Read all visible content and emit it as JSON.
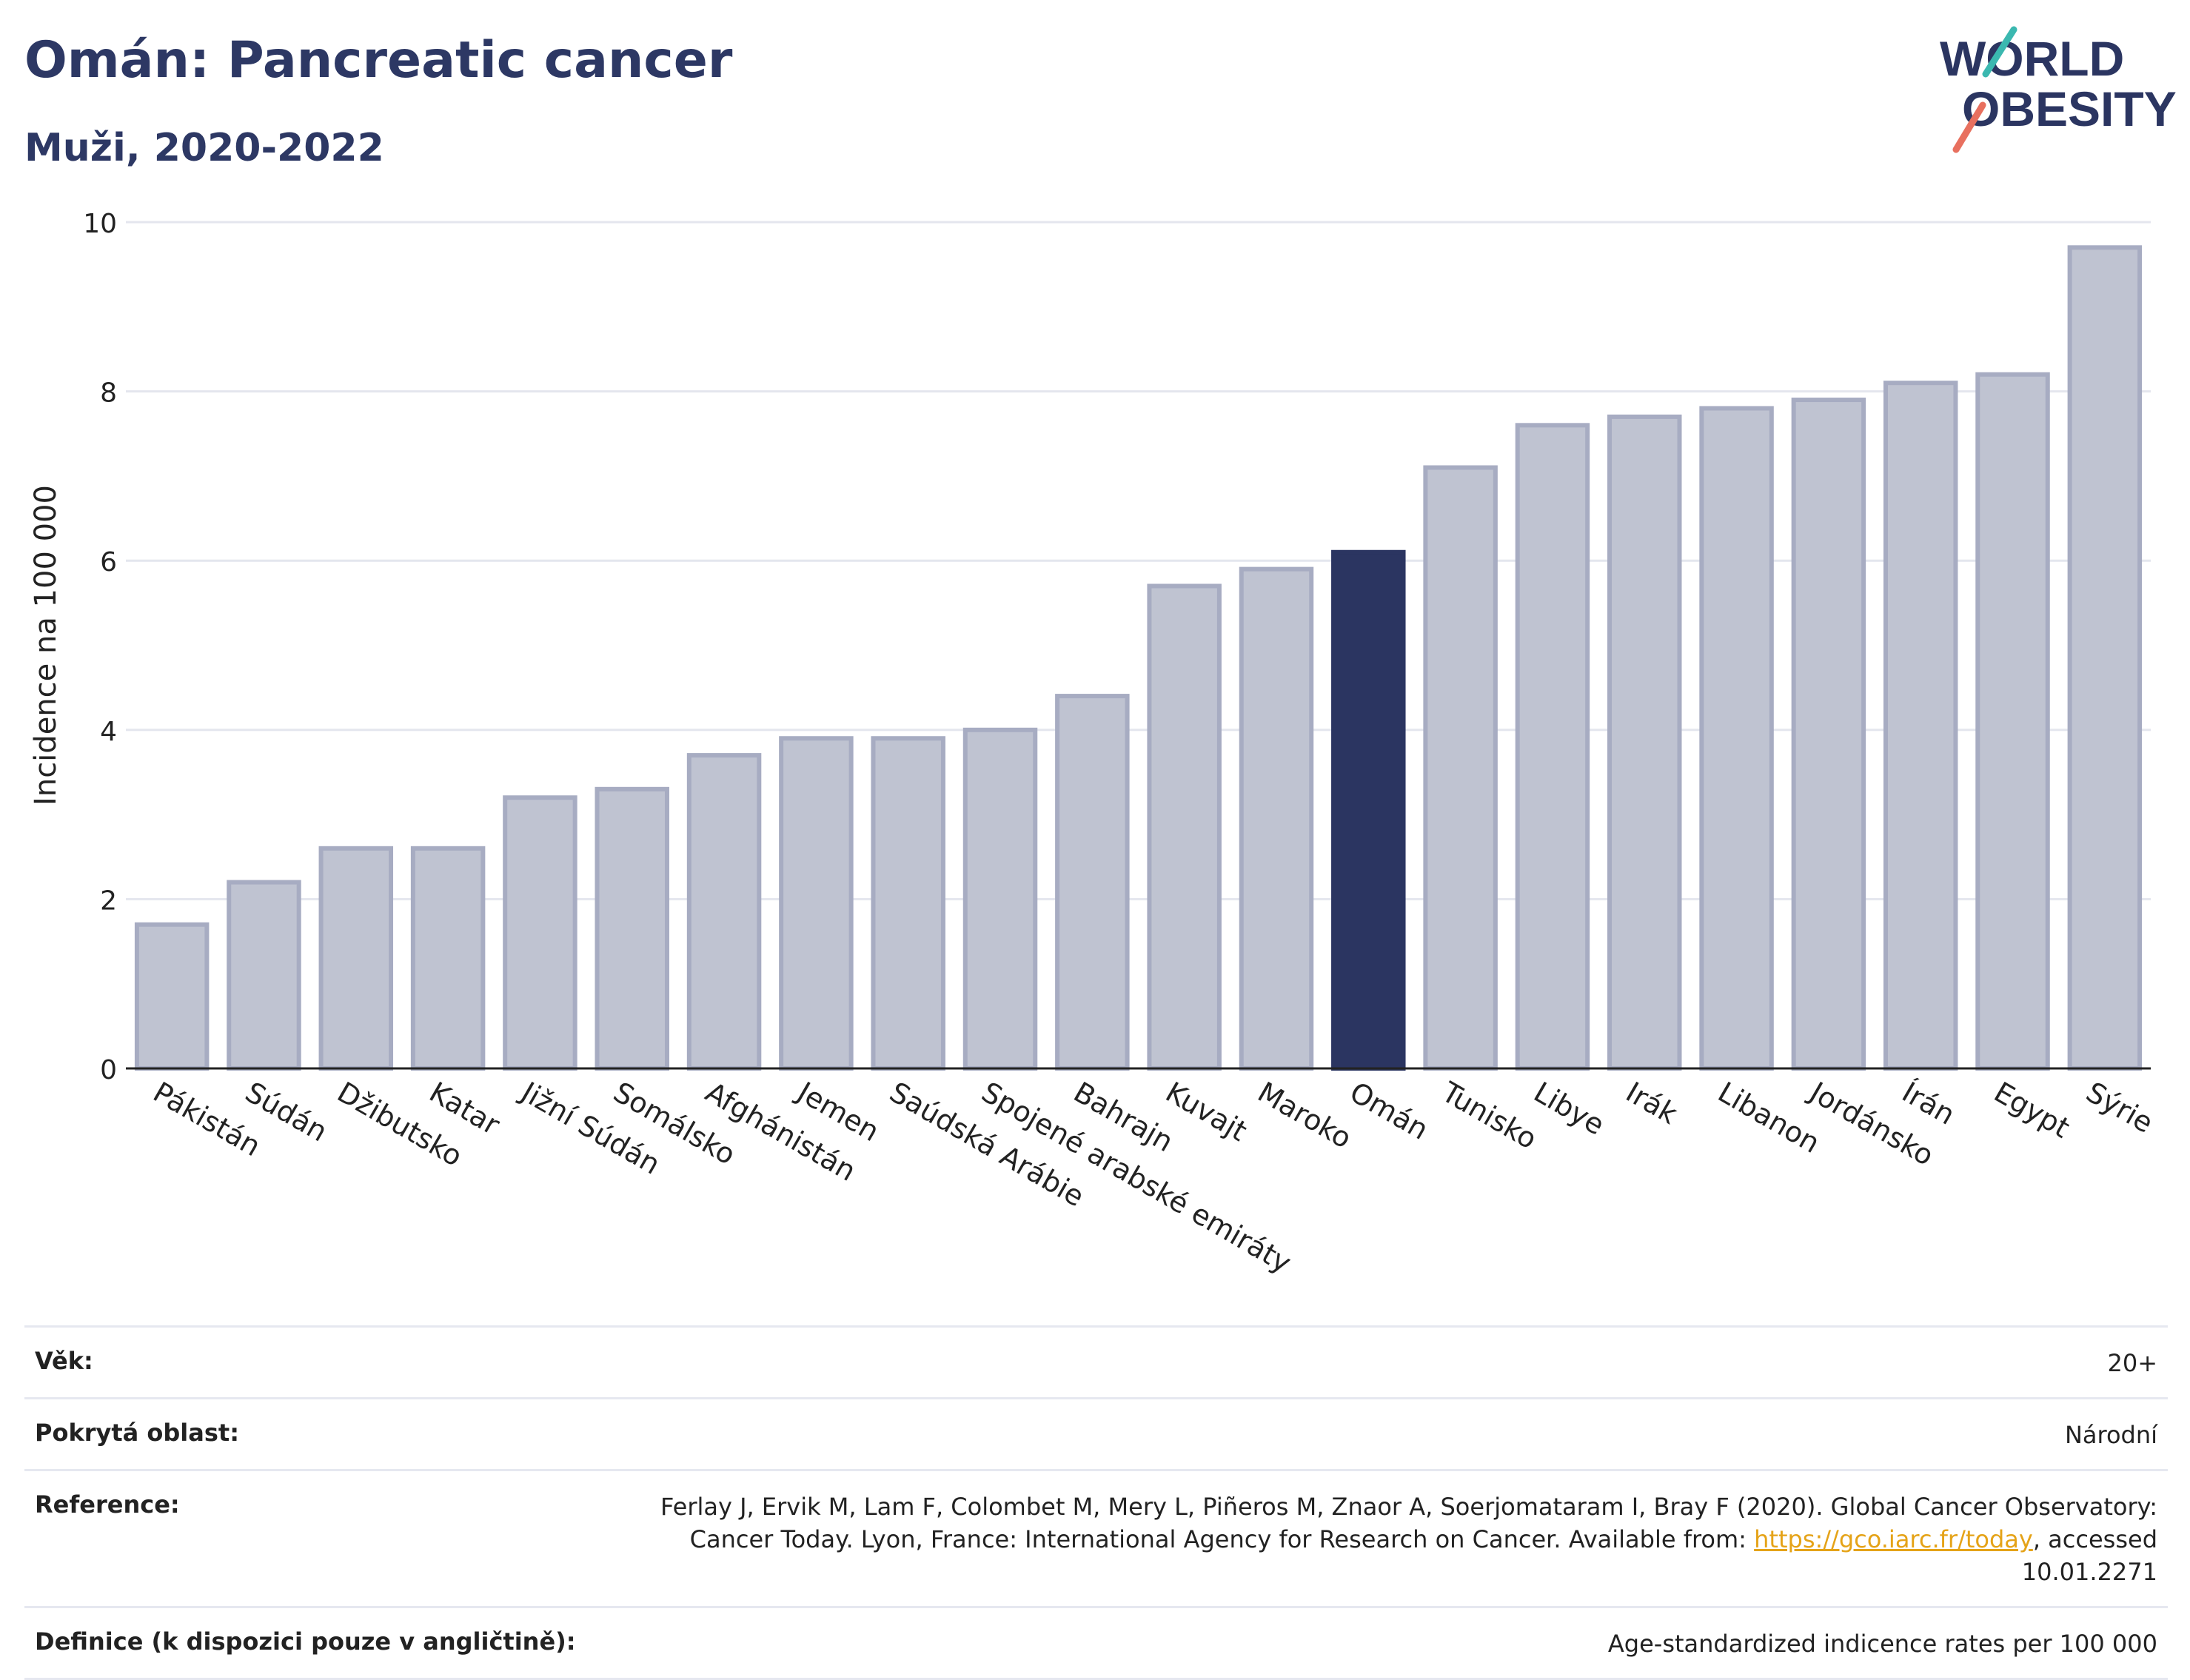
{
  "header": {
    "title": "Omán: Pancreatic cancer",
    "subtitle": "Muži, 2020-2022",
    "logo_line1": "WORLD",
    "logo_line2": "OBESITY"
  },
  "colors": {
    "bar": "#bfc3d1",
    "bar_border": "#a7acc2",
    "highlight": "#2b3561",
    "grid": "#e4e6ee",
    "text": "#2b3561",
    "link": "#e5a318",
    "logo_teal": "#3bb8b0",
    "logo_coral": "#e8705f"
  },
  "chart_data": {
    "type": "bar",
    "ylabel": "Incidence na 100 000",
    "ylim": [
      0,
      10
    ],
    "yticks": [
      0,
      2,
      4,
      6,
      8,
      10
    ],
    "grid": true,
    "highlight": "Omán",
    "categories": [
      "Pákistán",
      "Súdán",
      "Džibutsko",
      "Katar",
      "Jižní Súdán",
      "Somálsko",
      "Afghánistán",
      "Jemen",
      "Saúdská Arábie",
      "Spojené arabské emiráty",
      "Bahrajn",
      "Kuvajt",
      "Maroko",
      "Omán",
      "Tunisko",
      "Libye",
      "Irák",
      "Libanon",
      "Jordánsko",
      "Írán",
      "Egypt",
      "Sýrie"
    ],
    "values": [
      1.7,
      2.2,
      2.6,
      2.6,
      3.2,
      3.3,
      3.7,
      3.9,
      3.9,
      4.0,
      4.4,
      5.7,
      5.9,
      6.1,
      7.1,
      7.6,
      7.7,
      7.8,
      7.9,
      8.1,
      8.2,
      9.7
    ]
  },
  "meta": {
    "age_label": "Věk:",
    "age_value": "20+",
    "area_label": "Pokrytá oblast:",
    "area_value": "Národní",
    "ref_label": "Reference:",
    "ref_text_1": "Ferlay J, Ervik M, Lam F, Colombet M, Mery L, Piñeros M, Znaor A, Soerjomataram I, Bray F (2020). Global Cancer Observatory: Cancer Today. Lyon, France: International Agency for Research on Cancer. Available from: ",
    "ref_link": "https://gco.iarc.fr/today",
    "ref_text_2": ", accessed 10.01.2271",
    "def_label": "Definice (k dispozici pouze v angličtině):",
    "def_value": "Age-standardized indicence rates per 100 000"
  }
}
